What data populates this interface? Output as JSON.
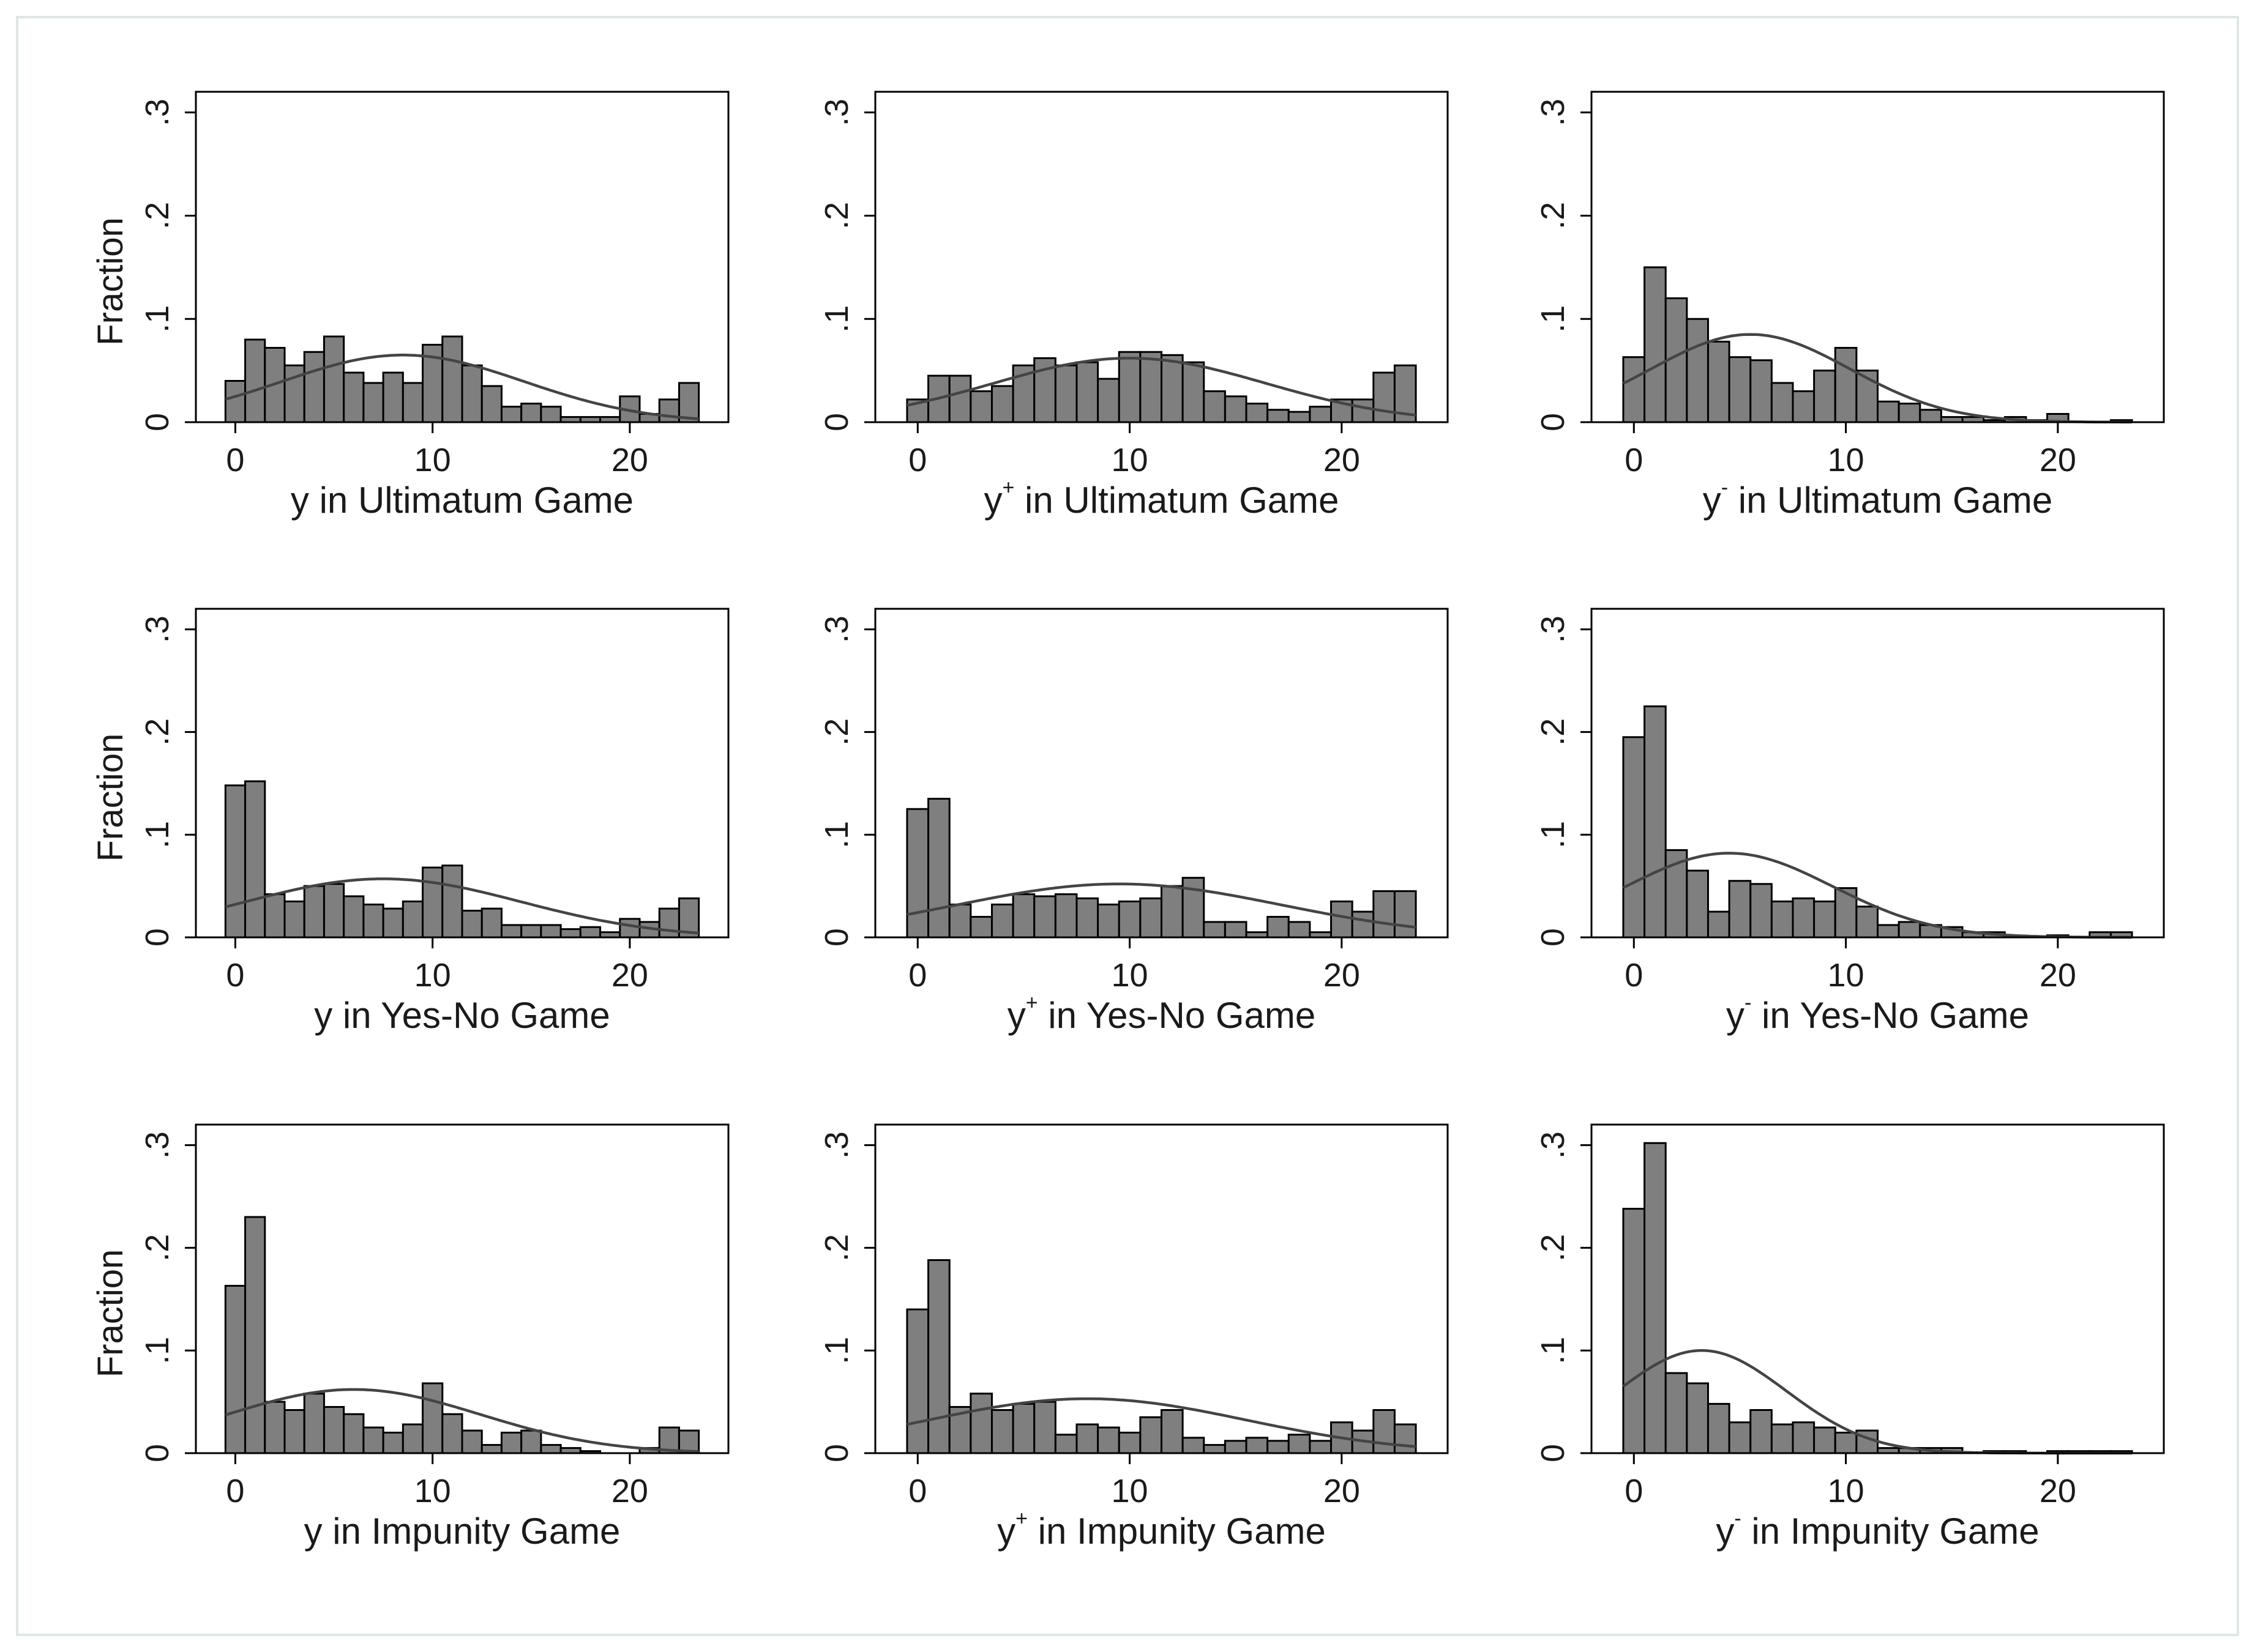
{
  "chart_data": [
    {
      "type": "histogram",
      "xlabel_main": "y",
      "xlabel_sup": "",
      "xlabel_rest": " in Ultimatum Game",
      "ylabel": "Fraction",
      "x_ticks": [
        "0",
        "10",
        "20"
      ],
      "y_ticks": [
        "0",
        ".1",
        ".2",
        ".3"
      ],
      "xlim": [
        -2,
        25
      ],
      "ylim": [
        0,
        0.32
      ],
      "bins": [
        0,
        1,
        2,
        3,
        4,
        5,
        6,
        7,
        8,
        9,
        10,
        11,
        12,
        13,
        14,
        15,
        16,
        17,
        18,
        19,
        20,
        21,
        22,
        23
      ],
      "values": [
        0.04,
        0.08,
        0.072,
        0.055,
        0.068,
        0.083,
        0.048,
        0.038,
        0.048,
        0.038,
        0.075,
        0.083,
        0.055,
        0.035,
        0.015,
        0.018,
        0.015,
        0.005,
        0.005,
        0.005,
        0.025,
        0.008,
        0.022,
        0.038
      ],
      "curve": {
        "mean": 8.5,
        "peak": 0.065
      }
    },
    {
      "type": "histogram",
      "xlabel_main": "y",
      "xlabel_sup": "+",
      "xlabel_rest": " in Ultimatum Game",
      "ylabel": "",
      "x_ticks": [
        "0",
        "10",
        "20"
      ],
      "y_ticks": [
        "0",
        ".1",
        ".2",
        ".3"
      ],
      "xlim": [
        -2,
        25
      ],
      "ylim": [
        0,
        0.32
      ],
      "bins": [
        0,
        1,
        2,
        3,
        4,
        5,
        6,
        7,
        8,
        9,
        10,
        11,
        12,
        13,
        14,
        15,
        16,
        17,
        18,
        19,
        20,
        21,
        22,
        23
      ],
      "values": [
        0.022,
        0.045,
        0.045,
        0.03,
        0.035,
        0.055,
        0.062,
        0.055,
        0.058,
        0.042,
        0.068,
        0.068,
        0.065,
        0.058,
        0.03,
        0.025,
        0.018,
        0.012,
        0.01,
        0.015,
        0.022,
        0.022,
        0.048,
        0.055
      ],
      "curve": {
        "mean": 10,
        "peak": 0.062
      }
    },
    {
      "type": "histogram",
      "xlabel_main": "y",
      "xlabel_sup": "-",
      "xlabel_rest": " in Ultimatum Game",
      "ylabel": "",
      "x_ticks": [
        "0",
        "10",
        "20"
      ],
      "y_ticks": [
        "0",
        ".1",
        ".2",
        ".3"
      ],
      "xlim": [
        -2,
        25
      ],
      "ylim": [
        0,
        0.32
      ],
      "bins": [
        0,
        1,
        2,
        3,
        4,
        5,
        6,
        7,
        8,
        9,
        10,
        11,
        12,
        13,
        14,
        15,
        16,
        17,
        18,
        19,
        20,
        21,
        22,
        23
      ],
      "values": [
        0.063,
        0.15,
        0.12,
        0.1,
        0.078,
        0.063,
        0.06,
        0.038,
        0.03,
        0.05,
        0.072,
        0.05,
        0.02,
        0.018,
        0.012,
        0.005,
        0.005,
        0.002,
        0.005,
        0.002,
        0.008,
        0,
        0,
        0.002
      ],
      "curve": {
        "mean": 5.5,
        "peak": 0.085
      }
    },
    {
      "type": "histogram",
      "xlabel_main": "y",
      "xlabel_sup": "",
      "xlabel_rest": " in Yes-No Game",
      "ylabel": "Fraction",
      "x_ticks": [
        "0",
        "10",
        "20"
      ],
      "y_ticks": [
        "0",
        ".1",
        ".2",
        ".3"
      ],
      "xlim": [
        -2,
        25
      ],
      "ylim": [
        0,
        0.32
      ],
      "bins": [
        0,
        1,
        2,
        3,
        4,
        5,
        6,
        7,
        8,
        9,
        10,
        11,
        12,
        13,
        14,
        15,
        16,
        17,
        18,
        19,
        20,
        21,
        22,
        23
      ],
      "values": [
        0.148,
        0.152,
        0.042,
        0.035,
        0.05,
        0.052,
        0.04,
        0.032,
        0.028,
        0.035,
        0.068,
        0.07,
        0.026,
        0.028,
        0.012,
        0.012,
        0.012,
        0.008,
        0.01,
        0.005,
        0.018,
        0.015,
        0.028,
        0.038
      ],
      "curve": {
        "mean": 7.5,
        "peak": 0.057
      }
    },
    {
      "type": "histogram",
      "xlabel_main": "y",
      "xlabel_sup": "+",
      "xlabel_rest": " in Yes-No Game",
      "ylabel": "",
      "x_ticks": [
        "0",
        "10",
        "20"
      ],
      "y_ticks": [
        "0",
        ".1",
        ".2",
        ".3"
      ],
      "xlim": [
        -2,
        25
      ],
      "ylim": [
        0,
        0.32
      ],
      "bins": [
        0,
        1,
        2,
        3,
        4,
        5,
        6,
        7,
        8,
        9,
        10,
        11,
        12,
        13,
        14,
        15,
        16,
        17,
        18,
        19,
        20,
        21,
        22,
        23
      ],
      "values": [
        0.125,
        0.135,
        0.032,
        0.02,
        0.032,
        0.042,
        0.04,
        0.042,
        0.038,
        0.032,
        0.035,
        0.038,
        0.05,
        0.058,
        0.015,
        0.015,
        0.005,
        0.02,
        0.015,
        0.005,
        0.035,
        0.025,
        0.045,
        0.045
      ],
      "curve": {
        "mean": 9.5,
        "peak": 0.052
      }
    },
    {
      "type": "histogram",
      "xlabel_main": "y",
      "xlabel_sup": "-",
      "xlabel_rest": " in Yes-No Game",
      "ylabel": "",
      "x_ticks": [
        "0",
        "10",
        "20"
      ],
      "y_ticks": [
        "0",
        ".1",
        ".2",
        ".3"
      ],
      "xlim": [
        -2,
        25
      ],
      "ylim": [
        0,
        0.32
      ],
      "bins": [
        0,
        1,
        2,
        3,
        4,
        5,
        6,
        7,
        8,
        9,
        10,
        11,
        12,
        13,
        14,
        15,
        16,
        17,
        18,
        19,
        20,
        21,
        22,
        23
      ],
      "values": [
        0.195,
        0.225,
        0.085,
        0.065,
        0.025,
        0.055,
        0.052,
        0.035,
        0.038,
        0.035,
        0.048,
        0.03,
        0.012,
        0.015,
        0.012,
        0.01,
        0.005,
        0.005,
        0,
        0,
        0.002,
        0,
        0.005,
        0.005
      ],
      "curve": {
        "mean": 4.5,
        "peak": 0.082
      }
    },
    {
      "type": "histogram",
      "xlabel_main": "y",
      "xlabel_sup": "",
      "xlabel_rest": " in Impunity Game",
      "ylabel": "Fraction",
      "x_ticks": [
        "0",
        "10",
        "20"
      ],
      "y_ticks": [
        "0",
        ".1",
        ".2",
        ".3"
      ],
      "xlim": [
        -2,
        25
      ],
      "ylim": [
        0,
        0.32
      ],
      "bins": [
        0,
        1,
        2,
        3,
        4,
        5,
        6,
        7,
        8,
        9,
        10,
        11,
        12,
        13,
        14,
        15,
        16,
        17,
        18,
        19,
        20,
        21,
        22,
        23
      ],
      "values": [
        0.163,
        0.23,
        0.05,
        0.042,
        0.058,
        0.045,
        0.038,
        0.025,
        0.02,
        0.028,
        0.068,
        0.038,
        0.022,
        0.008,
        0.02,
        0.022,
        0.008,
        0.005,
        0.002,
        0,
        0,
        0.005,
        0.025,
        0.022
      ],
      "curve": {
        "mean": 6,
        "peak": 0.062
      }
    },
    {
      "type": "histogram",
      "xlabel_main": "y",
      "xlabel_sup": "+",
      "xlabel_rest": " in Impunity Game",
      "ylabel": "",
      "x_ticks": [
        "0",
        "10",
        "20"
      ],
      "y_ticks": [
        "0",
        ".1",
        ".2",
        ".3"
      ],
      "xlim": [
        -2,
        25
      ],
      "ylim": [
        0,
        0.32
      ],
      "bins": [
        0,
        1,
        2,
        3,
        4,
        5,
        6,
        7,
        8,
        9,
        10,
        11,
        12,
        13,
        14,
        15,
        16,
        17,
        18,
        19,
        20,
        21,
        22,
        23
      ],
      "values": [
        0.14,
        0.188,
        0.045,
        0.058,
        0.042,
        0.048,
        0.05,
        0.018,
        0.028,
        0.025,
        0.02,
        0.035,
        0.042,
        0.015,
        0.008,
        0.012,
        0.015,
        0.012,
        0.018,
        0.012,
        0.03,
        0.022,
        0.042,
        0.028
      ],
      "curve": {
        "mean": 8,
        "peak": 0.053
      }
    },
    {
      "type": "histogram",
      "xlabel_main": "y",
      "xlabel_sup": "-",
      "xlabel_rest": " in Impunity Game",
      "ylabel": "",
      "x_ticks": [
        "0",
        "10",
        "20"
      ],
      "y_ticks": [
        "0",
        ".1",
        ".2",
        ".3"
      ],
      "xlim": [
        -2,
        25
      ],
      "ylim": [
        0,
        0.32
      ],
      "bins": [
        0,
        1,
        2,
        3,
        4,
        5,
        6,
        7,
        8,
        9,
        10,
        11,
        12,
        13,
        14,
        15,
        16,
        17,
        18,
        19,
        20,
        21,
        22,
        23
      ],
      "values": [
        0.238,
        0.302,
        0.078,
        0.068,
        0.048,
        0.03,
        0.042,
        0.028,
        0.03,
        0.025,
        0.02,
        0.022,
        0.005,
        0.005,
        0.005,
        0.005,
        0,
        0.002,
        0.002,
        0,
        0.002,
        0.002,
        0.002,
        0.002
      ],
      "curve": {
        "mean": 3.2,
        "peak": 0.1
      }
    }
  ]
}
